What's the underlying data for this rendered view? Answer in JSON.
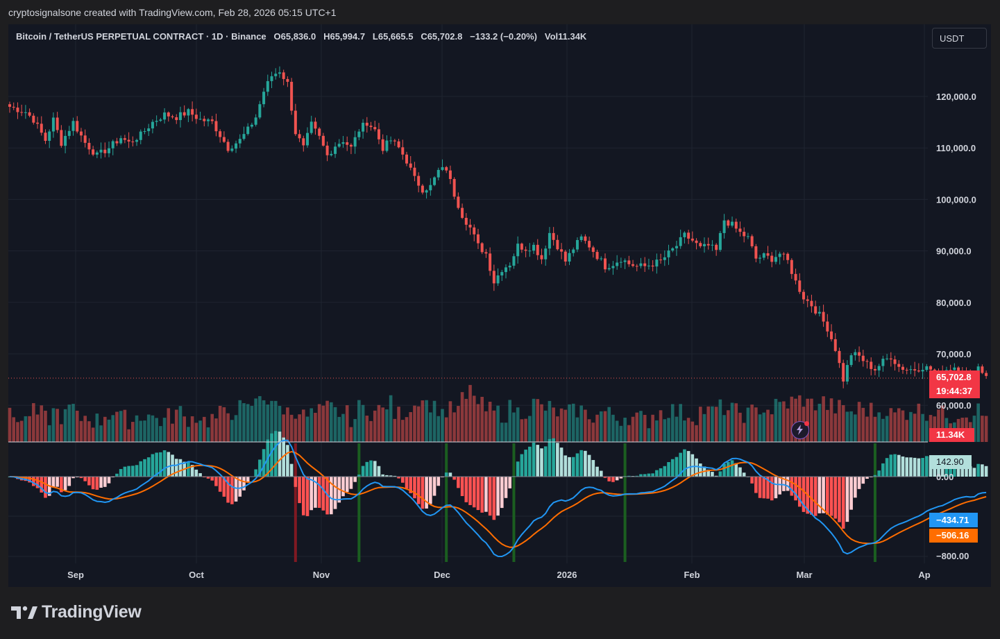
{
  "header": {
    "credit": "cryptosignalsone created with TradingView.com, Feb 28, 2026 05:15 UTC+1"
  },
  "legend": {
    "symbol": "Bitcoin / TetherUS PERPETUAL CONTRACT · 1D · Binance",
    "open": "O65,836.0",
    "high": "H65,994.7",
    "low": "L65,665.5",
    "close": "C65,702.8",
    "change": "−133.2 (−0.20%)",
    "volume": "Vol11.34K"
  },
  "currency_button": "USDT",
  "price_tags": {
    "last_price": "65,702.8",
    "countdown": "19:44:37",
    "volume": "11.34K",
    "hist": "142.90",
    "zero": "0.00",
    "macd": "−434.71",
    "signal": "−506.16",
    "bottom": "−800.00"
  },
  "logo": "TradingView",
  "colors": {
    "up": "#26a69a",
    "down": "#ef5350",
    "macd_line": "#2196f3",
    "signal_line": "#ff6d00",
    "hist_up_strong": "#26a69a",
    "hist_up_weak": "#b2dfdb",
    "hist_down_strong": "#ff5252",
    "hist_down_weak": "#ffcdd2",
    "cross_up": "#1b5e20",
    "cross_down": "#801922"
  },
  "chart_data": {
    "type": "candlestick",
    "price_axis": {
      "ticks": [
        "120,000.0",
        "110,000.0",
        "100,000.0",
        "90,000.0",
        "80,000.0",
        "70,000.0",
        "60,000.0"
      ],
      "tick_values": [
        120000,
        110000,
        100000,
        90000,
        80000,
        70000,
        60000
      ]
    },
    "macd_axis": {
      "ticks": [
        "0.00",
        "−800.00"
      ]
    },
    "time_axis": {
      "labels": [
        "Sep",
        "Oct",
        "Nov",
        "Dec",
        "2026",
        "Feb",
        "Mar",
        "Ap"
      ]
    },
    "price_path": [
      [
        0,
        118000
      ],
      [
        4,
        117000
      ],
      [
        6,
        115500
      ],
      [
        9,
        111500
      ],
      [
        11,
        115500
      ],
      [
        13,
        111000
      ],
      [
        16,
        115000
      ],
      [
        19,
        111000
      ],
      [
        22,
        108500
      ],
      [
        25,
        110000
      ],
      [
        28,
        112000
      ],
      [
        30,
        111000
      ],
      [
        33,
        112500
      ],
      [
        36,
        115000
      ],
      [
        39,
        116500
      ],
      [
        42,
        116000
      ],
      [
        45,
        117000
      ],
      [
        48,
        115500
      ],
      [
        51,
        115000
      ],
      [
        53,
        112500
      ],
      [
        55,
        110000
      ],
      [
        58,
        111500
      ],
      [
        60,
        113500
      ],
      [
        62,
        116000
      ],
      [
        64,
        121000
      ],
      [
        66,
        124000
      ],
      [
        68,
        125000
      ],
      [
        70,
        122500
      ],
      [
        72,
        113000
      ],
      [
        74,
        110000
      ],
      [
        76,
        114500
      ],
      [
        78,
        112000
      ],
      [
        80,
        108500
      ],
      [
        82,
        110500
      ],
      [
        84,
        111500
      ],
      [
        86,
        110000
      ],
      [
        88,
        113500
      ],
      [
        90,
        115000
      ],
      [
        92,
        113500
      ],
      [
        94,
        110000
      ],
      [
        96,
        111500
      ],
      [
        98,
        110000
      ],
      [
        100,
        107500
      ],
      [
        102,
        104000
      ],
      [
        104,
        102000
      ],
      [
        106,
        102500
      ],
      [
        108,
        105500
      ],
      [
        110,
        106000
      ],
      [
        112,
        101000
      ],
      [
        114,
        97000
      ],
      [
        116,
        94500
      ],
      [
        118,
        91000
      ],
      [
        120,
        89500
      ],
      [
        122,
        84000
      ],
      [
        124,
        86500
      ],
      [
        126,
        87500
      ],
      [
        128,
        91000
      ],
      [
        130,
        90500
      ],
      [
        132,
        91000
      ],
      [
        134,
        88500
      ],
      [
        136,
        93500
      ],
      [
        138,
        91000
      ],
      [
        140,
        88000
      ],
      [
        142,
        90500
      ],
      [
        144,
        92500
      ],
      [
        146,
        91000
      ],
      [
        148,
        89000
      ],
      [
        150,
        87000
      ],
      [
        152,
        87500
      ],
      [
        154,
        88500
      ],
      [
        156,
        87500
      ],
      [
        158,
        87000
      ],
      [
        160,
        87000
      ],
      [
        162,
        87500
      ],
      [
        164,
        88000
      ],
      [
        166,
        89500
      ],
      [
        168,
        91000
      ],
      [
        170,
        93000
      ],
      [
        172,
        92000
      ],
      [
        174,
        90500
      ],
      [
        176,
        91000
      ],
      [
        178,
        90000
      ],
      [
        180,
        96000
      ],
      [
        182,
        95000
      ],
      [
        184,
        93500
      ],
      [
        186,
        92500
      ],
      [
        188,
        88500
      ],
      [
        190,
        89000
      ],
      [
        192,
        88500
      ],
      [
        194,
        89500
      ],
      [
        196,
        88000
      ],
      [
        198,
        84000
      ],
      [
        200,
        81000
      ],
      [
        202,
        79500
      ],
      [
        204,
        77500
      ],
      [
        206,
        75000
      ],
      [
        208,
        71000
      ],
      [
        210,
        65000
      ],
      [
        212,
        70000
      ],
      [
        214,
        69500
      ],
      [
        216,
        68000
      ],
      [
        218,
        67000
      ],
      [
        220,
        68500
      ],
      [
        222,
        69500
      ],
      [
        224,
        67500
      ],
      [
        226,
        67000
      ],
      [
        228,
        67000
      ],
      [
        230,
        67500
      ],
      [
        232,
        67000
      ],
      [
        234,
        66000
      ],
      [
        236,
        67000
      ],
      [
        238,
        67500
      ],
      [
        240,
        67000
      ],
      [
        242,
        64500
      ],
      [
        244,
        67500
      ],
      [
        246,
        65700
      ]
    ],
    "volume_profile": [
      0.4,
      0.3,
      0.5,
      0.45,
      0.35,
      0.5,
      0.4,
      0.6,
      0.35,
      0.4,
      0.3,
      0.45,
      0.5,
      0.35,
      0.3,
      0.4,
      0.45,
      0.35,
      0.3,
      0.4,
      0.5,
      0.35,
      0.4,
      0.3,
      0.35,
      0.45,
      0.5,
      0.6,
      0.55,
      0.7,
      0.9,
      0.8,
      0.6,
      0.5,
      0.55,
      0.4,
      0.45,
      0.5,
      0.6,
      0.5,
      0.45,
      0.35,
      0.6,
      0.5,
      0.55,
      0.7,
      0.45,
      0.5,
      0.65,
      0.85,
      0.7,
      0.6,
      0.5,
      0.55,
      0.8,
      1.0,
      0.65,
      0.55,
      0.5,
      0.45,
      0.6,
      0.5,
      0.55,
      0.7,
      0.6,
      0.5,
      0.45,
      0.5,
      0.55,
      0.45,
      0.4,
      0.5,
      0.45,
      0.35,
      0.4,
      0.35,
      0.3,
      0.45,
      0.5,
      0.55,
      0.5,
      0.45,
      0.4,
      0.55,
      0.5,
      0.6,
      0.55,
      0.5,
      0.45,
      0.5,
      0.6,
      0.55,
      0.65,
      0.7,
      0.75,
      0.8,
      0.7,
      0.75,
      0.65,
      0.6,
      0.55,
      0.5,
      0.6,
      0.55,
      0.5,
      0.55,
      0.45,
      0.5,
      0.6,
      0.55,
      0.5,
      0.55,
      0.45,
      0.4,
      0.5,
      0.45,
      0.55,
      0.4
    ]
  }
}
